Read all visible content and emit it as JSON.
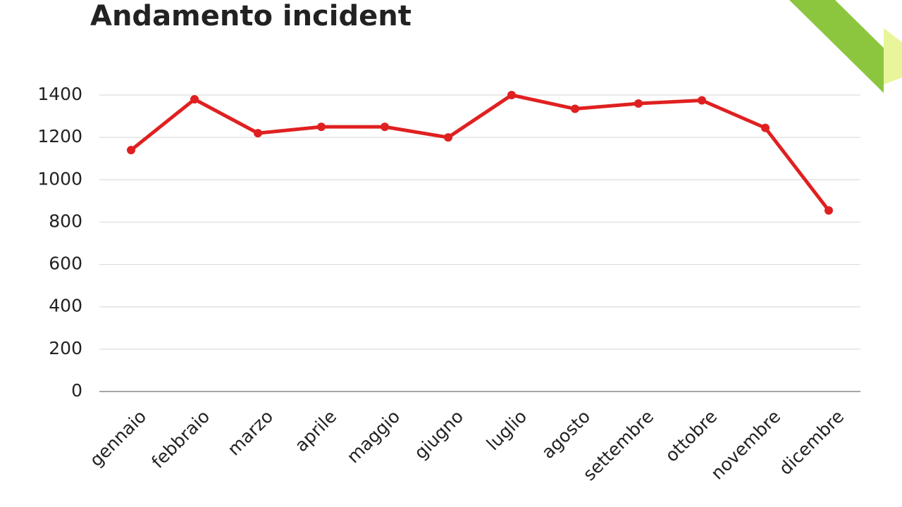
{
  "chart_data": {
    "type": "line",
    "title": "Andamento incident",
    "categories": [
      "gennaio",
      "febbraio",
      "marzo",
      "aprile",
      "maggio",
      "giugno",
      "luglio",
      "agosto",
      "settembre",
      "ottobre",
      "novembre",
      "dicembre"
    ],
    "series": [
      {
        "name": "incident",
        "color": "#e02020",
        "values": [
          1140,
          1380,
          1220,
          1250,
          1250,
          1200,
          1400,
          1335,
          1360,
          1375,
          1245,
          855
        ]
      }
    ],
    "ylim": [
      0,
      1400
    ],
    "yticks": [
      0,
      200,
      400,
      600,
      800,
      1000,
      1200,
      1400
    ],
    "grid": true
  }
}
